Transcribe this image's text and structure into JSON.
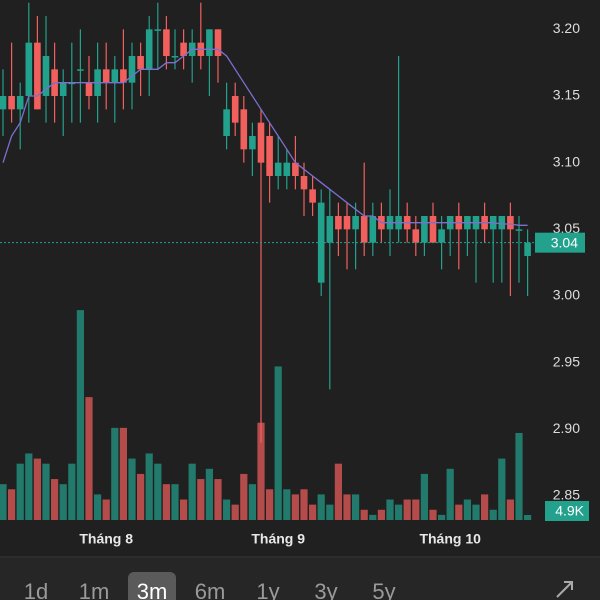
{
  "chart_data": {
    "type": "candlestick",
    "categories": [
      null,
      null,
      null,
      null,
      null,
      null,
      null,
      null,
      null,
      null,
      null,
      null,
      "Tháng 8",
      null,
      null,
      null,
      null,
      null,
      null,
      null,
      null,
      null,
      null,
      null,
      null,
      null,
      null,
      null,
      null,
      null,
      null,
      null,
      "Tháng 9",
      null,
      null,
      null,
      null,
      null,
      null,
      null,
      null,
      null,
      null,
      null,
      null,
      null,
      null,
      null,
      null,
      null,
      null,
      null,
      "Tháng 10",
      null,
      null,
      null,
      null,
      null,
      null,
      null,
      null,
      null
    ],
    "open": [
      3.14,
      3.15,
      3.14,
      3.15,
      3.19,
      3.15,
      3.17,
      3.15,
      3.16,
      3.17,
      3.16,
      3.15,
      3.17,
      3.16,
      3.17,
      3.16,
      3.18,
      3.17,
      3.2,
      3.2,
      3.18,
      3.19,
      3.18,
      3.19,
      3.18,
      3.2,
      3.12,
      3.15,
      3.14,
      3.11,
      3.13,
      3.12,
      3.09,
      3.09,
      3.1,
      3.09,
      3.08,
      3.01,
      3.04,
      3.06,
      3.06,
      3.05,
      3.06,
      3.04,
      3.06,
      3.05,
      3.05,
      3.06,
      3.05,
      3.04,
      3.06,
      3.04,
      3.05,
      3.06,
      3.05,
      3.05,
      3.06,
      3.05,
      3.05,
      3.06,
      3.05,
      3.03
    ],
    "high": [
      3.17,
      3.19,
      3.16,
      3.22,
      3.21,
      3.21,
      3.19,
      3.17,
      3.19,
      3.2,
      3.18,
      3.19,
      3.19,
      3.18,
      3.2,
      3.19,
      3.19,
      3.21,
      3.22,
      3.21,
      3.2,
      3.2,
      3.2,
      3.22,
      3.2,
      3.2,
      3.16,
      3.16,
      3.15,
      3.13,
      3.14,
      3.13,
      3.12,
      3.11,
      3.12,
      3.1,
      3.09,
      3.08,
      3.08,
      3.07,
      3.07,
      3.07,
      3.1,
      3.07,
      3.07,
      3.08,
      3.18,
      3.07,
      3.06,
      3.06,
      3.07,
      3.06,
      3.06,
      3.07,
      3.06,
      3.06,
      3.07,
      3.06,
      3.06,
      3.07,
      3.06,
      3.05
    ],
    "low": [
      3.12,
      3.13,
      3.11,
      3.13,
      3.14,
      3.13,
      3.13,
      3.12,
      3.13,
      3.13,
      3.14,
      3.13,
      3.14,
      3.13,
      3.14,
      3.14,
      3.15,
      3.15,
      3.17,
      3.17,
      3.17,
      3.17,
      3.16,
      3.17,
      3.15,
      3.16,
      3.11,
      3.12,
      3.1,
      3.09,
      2.89,
      3.07,
      3.08,
      3.08,
      3.08,
      3.06,
      3.06,
      3.0,
      2.93,
      3.03,
      3.02,
      3.02,
      3.03,
      3.03,
      3.04,
      3.03,
      3.04,
      3.04,
      3.03,
      3.03,
      3.04,
      3.02,
      3.03,
      3.02,
      3.03,
      3.01,
      3.04,
      3.01,
      3.01,
      3.0,
      3.01,
      3.0
    ],
    "close": [
      3.15,
      3.14,
      3.15,
      3.19,
      3.14,
      3.18,
      3.15,
      3.16,
      3.16,
      3.17,
      3.15,
      3.17,
      3.16,
      3.17,
      3.16,
      3.18,
      3.17,
      3.2,
      3.2,
      3.18,
      3.18,
      3.18,
      3.19,
      3.18,
      3.2,
      3.18,
      3.14,
      3.13,
      3.11,
      3.12,
      3.1,
      3.09,
      3.1,
      3.1,
      3.09,
      3.08,
      3.07,
      3.07,
      3.06,
      3.05,
      3.05,
      3.06,
      3.04,
      3.06,
      3.05,
      3.06,
      3.06,
      3.05,
      3.04,
      3.06,
      3.04,
      3.05,
      3.06,
      3.05,
      3.06,
      3.06,
      3.05,
      3.06,
      3.06,
      3.05,
      3.05,
      3.04
    ],
    "ma": [
      3.1,
      3.12,
      3.13,
      3.15,
      3.15,
      3.155,
      3.16,
      3.16,
      3.16,
      3.16,
      3.16,
      3.16,
      3.16,
      3.16,
      3.16,
      3.165,
      3.17,
      3.17,
      3.17,
      3.175,
      3.175,
      3.18,
      3.185,
      3.185,
      3.185,
      3.185,
      3.18,
      3.17,
      3.16,
      3.15,
      3.14,
      3.13,
      3.12,
      3.11,
      3.1,
      3.095,
      3.09,
      3.085,
      3.08,
      3.075,
      3.07,
      3.065,
      3.06,
      3.06,
      3.055,
      3.055,
      3.055,
      3.055,
      3.055,
      3.055,
      3.055,
      3.055,
      3.055,
      3.055,
      3.055,
      3.055,
      3.055,
      3.055,
      3.054,
      3.054,
      3.053,
      3.053
    ],
    "ma_color": "#7b6fd0",
    "up_color": "#22a18c",
    "down_color": "#f2605e",
    "volume": {
      "values": [
        35,
        30,
        55,
        65,
        60,
        55,
        40,
        35,
        55,
        205,
        120,
        25,
        20,
        90,
        90,
        60,
        45,
        65,
        55,
        35,
        35,
        20,
        55,
        40,
        50,
        40,
        20,
        15,
        45,
        35,
        95,
        30,
        150,
        30,
        25,
        30,
        15,
        25,
        15,
        55,
        25,
        25,
        10,
        5,
        10,
        20,
        15,
        20,
        20,
        45,
        10,
        5,
        50,
        15,
        20,
        15,
        25,
        10,
        60,
        20,
        85,
        4.9
      ],
      "value_labels": [
        null,
        null,
        null,
        null,
        null,
        null,
        null,
        null,
        null,
        null,
        null,
        null,
        null,
        null,
        null,
        null,
        null,
        null,
        null,
        null,
        null,
        null,
        null,
        null,
        null,
        null,
        null,
        null,
        null,
        null,
        null,
        null,
        null,
        null,
        null,
        null,
        null,
        null,
        null,
        null,
        null,
        null,
        null,
        null,
        null,
        null,
        null,
        null,
        null,
        null,
        null,
        null,
        null,
        null,
        null,
        null,
        null,
        null,
        null,
        null,
        null,
        "4.9K"
      ],
      "vlim": [
        0,
        210
      ]
    },
    "ylim": [
      2.832,
      3.222
    ],
    "yticks": [
      {
        "value": 3.2,
        "label": "3.20"
      },
      3.15,
      {
        "value": 3.1,
        "label": "3.10"
      },
      3.05,
      {
        "value": 3.0,
        "label": "3.00"
      },
      2.95,
      {
        "value": 2.9,
        "label": "2.90"
      },
      2.85
    ]
  },
  "range_tabs": {
    "items": [
      "1d",
      "1m",
      "3m",
      "6m",
      "1y",
      "3y",
      "5y"
    ],
    "selected": 2
  }
}
